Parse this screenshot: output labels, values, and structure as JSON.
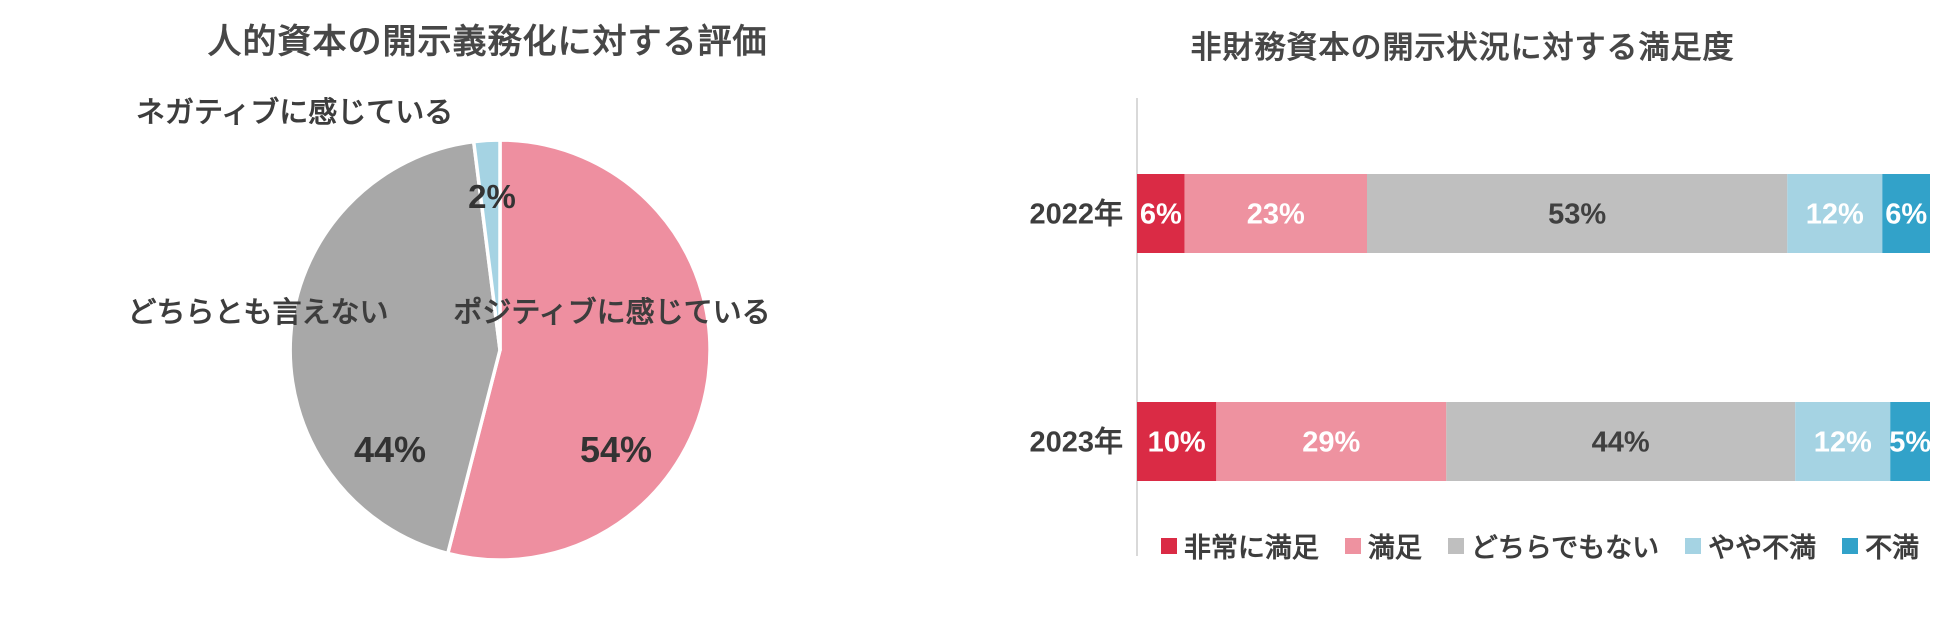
{
  "page": {
    "background": "#ffffff"
  },
  "palette": {
    "very_satisfied": "#da2b45",
    "satisfied": "#ee92a0",
    "neutral_bar": "#bfbfbf",
    "somewhat_dissatisfied": "#a5d3e3",
    "dissatisfied": "#32a2c9",
    "pie_positive": "#ee8fa0",
    "pie_neutral": "#a8a8a8",
    "pie_negative": "#a5d3e3",
    "text_dark": "#3d3d3d",
    "label_on_color": "#ffffff",
    "label_on_gray": "#404040",
    "axis_line": "#d9d9d9"
  },
  "chart_data": [
    {
      "id": "human-capital-pie",
      "type": "pie",
      "title": "人的資本の開示義務化に対する評価",
      "start_angle_deg": 0,
      "direction": "clockwise",
      "value_suffix": "%",
      "slices": [
        {
          "label": "ポジティブに感じている",
          "value": 54,
          "display": "54%",
          "color_key": "pie_positive"
        },
        {
          "label": "どちらとも言えない",
          "value": 44,
          "display": "44%",
          "color_key": "pie_neutral"
        },
        {
          "label": "ネガティブに感じている",
          "value": 2,
          "display": "2%",
          "color_key": "pie_negative"
        }
      ]
    },
    {
      "id": "non-financial-satisfaction-bars",
      "type": "bar",
      "variant": "stacked-horizontal",
      "title": "非財務資本の開示状況に対する満足度",
      "categories": [
        "2022年",
        "2023年"
      ],
      "xlim": [
        0,
        100
      ],
      "value_suffix": "%",
      "legend_position": "bottom",
      "series": [
        {
          "name": "非常に満足",
          "values": [
            6,
            10
          ],
          "display": [
            "6%",
            "10%"
          ],
          "color_key": "very_satisfied"
        },
        {
          "name": "満足",
          "values": [
            23,
            29
          ],
          "display": [
            "23%",
            "29%"
          ],
          "color_key": "satisfied"
        },
        {
          "name": "どちらでもない",
          "values": [
            53,
            44
          ],
          "display": [
            "53%",
            "44%"
          ],
          "color_key": "neutral_bar"
        },
        {
          "name": "やや不満",
          "values": [
            12,
            12
          ],
          "display": [
            "12%",
            "12%"
          ],
          "color_key": "somewhat_dissatisfied"
        },
        {
          "name": "不満",
          "values": [
            6,
            5
          ],
          "display": [
            "6%",
            "5%"
          ],
          "color_key": "dissatisfied"
        }
      ]
    }
  ]
}
